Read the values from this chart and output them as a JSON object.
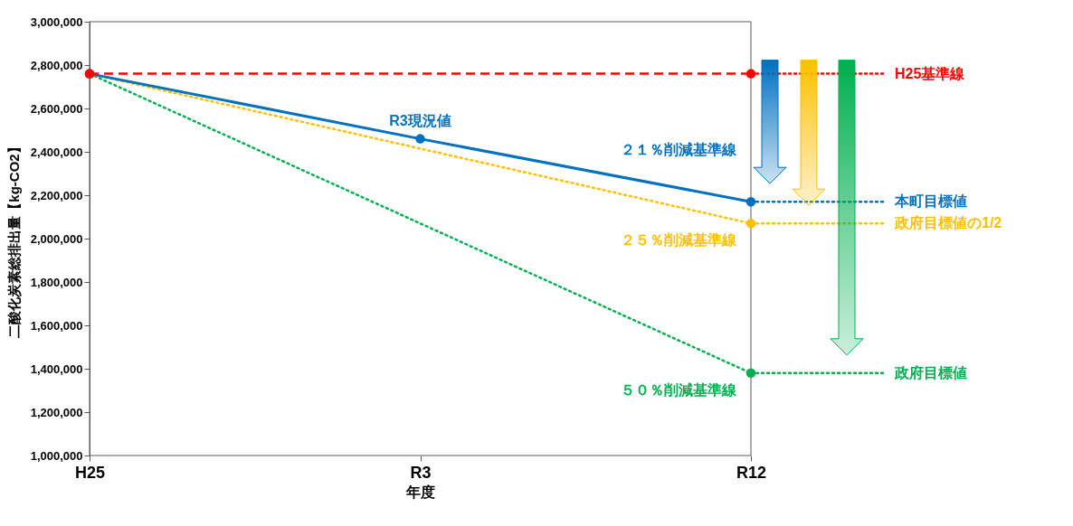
{
  "chart_data": {
    "type": "line",
    "xlabel": "年度",
    "ylabel": "二酸化炭素総排出量【kg-CO2】",
    "categories": [
      "H25",
      "R3",
      "R12"
    ],
    "series": [
      {
        "color": "#ff0000",
        "values": [
          2760000,
          null,
          2760000
        ],
        "line_style": "dashed"
      },
      {
        "name": "２１％削減基準線",
        "color": "#0070c0",
        "values": [
          2760000,
          2460000,
          2170000
        ],
        "line_style": "solid"
      },
      {
        "name": "２５％削減基準線",
        "color": "#ffc000",
        "values": [
          2760000,
          null,
          2070000
        ],
        "line_style": "dotted"
      },
      {
        "name": "５０％削減基準線",
        "color": "#00b050",
        "values": [
          2760000,
          null,
          1380000
        ],
        "line_style": "dotted"
      }
    ],
    "ylim": [
      1000000,
      3000000
    ],
    "yticks": [
      {
        "value": 1000000,
        "label": "1,000,000"
      },
      {
        "value": 1200000,
        "label": "1,200,000"
      },
      {
        "value": 1400000,
        "label": "1,400,000"
      },
      {
        "value": 1600000,
        "label": "1,600,000"
      },
      {
        "value": 1800000,
        "label": "1,800,000"
      },
      {
        "value": 2000000,
        "label": "2,000,000"
      },
      {
        "value": 2200000,
        "label": "2,200,000"
      },
      {
        "value": 2400000,
        "label": "2,400,000"
      },
      {
        "value": 2600000,
        "label": "2,600,000"
      },
      {
        "value": 2800000,
        "label": "2,800,000"
      },
      {
        "value": 3000000,
        "label": "3,000,000"
      }
    ],
    "grid": false,
    "marker": "circle",
    "annotations": [
      {
        "text": "R3現況値",
        "x": "R3",
        "y": 2460000
      },
      {
        "text": "H25基準線",
        "x": "R12",
        "y": 2760000
      },
      {
        "text": "本町目標値",
        "x": "R12",
        "y": 2170000
      },
      {
        "text": "政府目標値の1/2",
        "x": "R12",
        "y": 2070000
      },
      {
        "text": "政府目標値",
        "x": "R12",
        "y": 1380000
      }
    ]
  }
}
